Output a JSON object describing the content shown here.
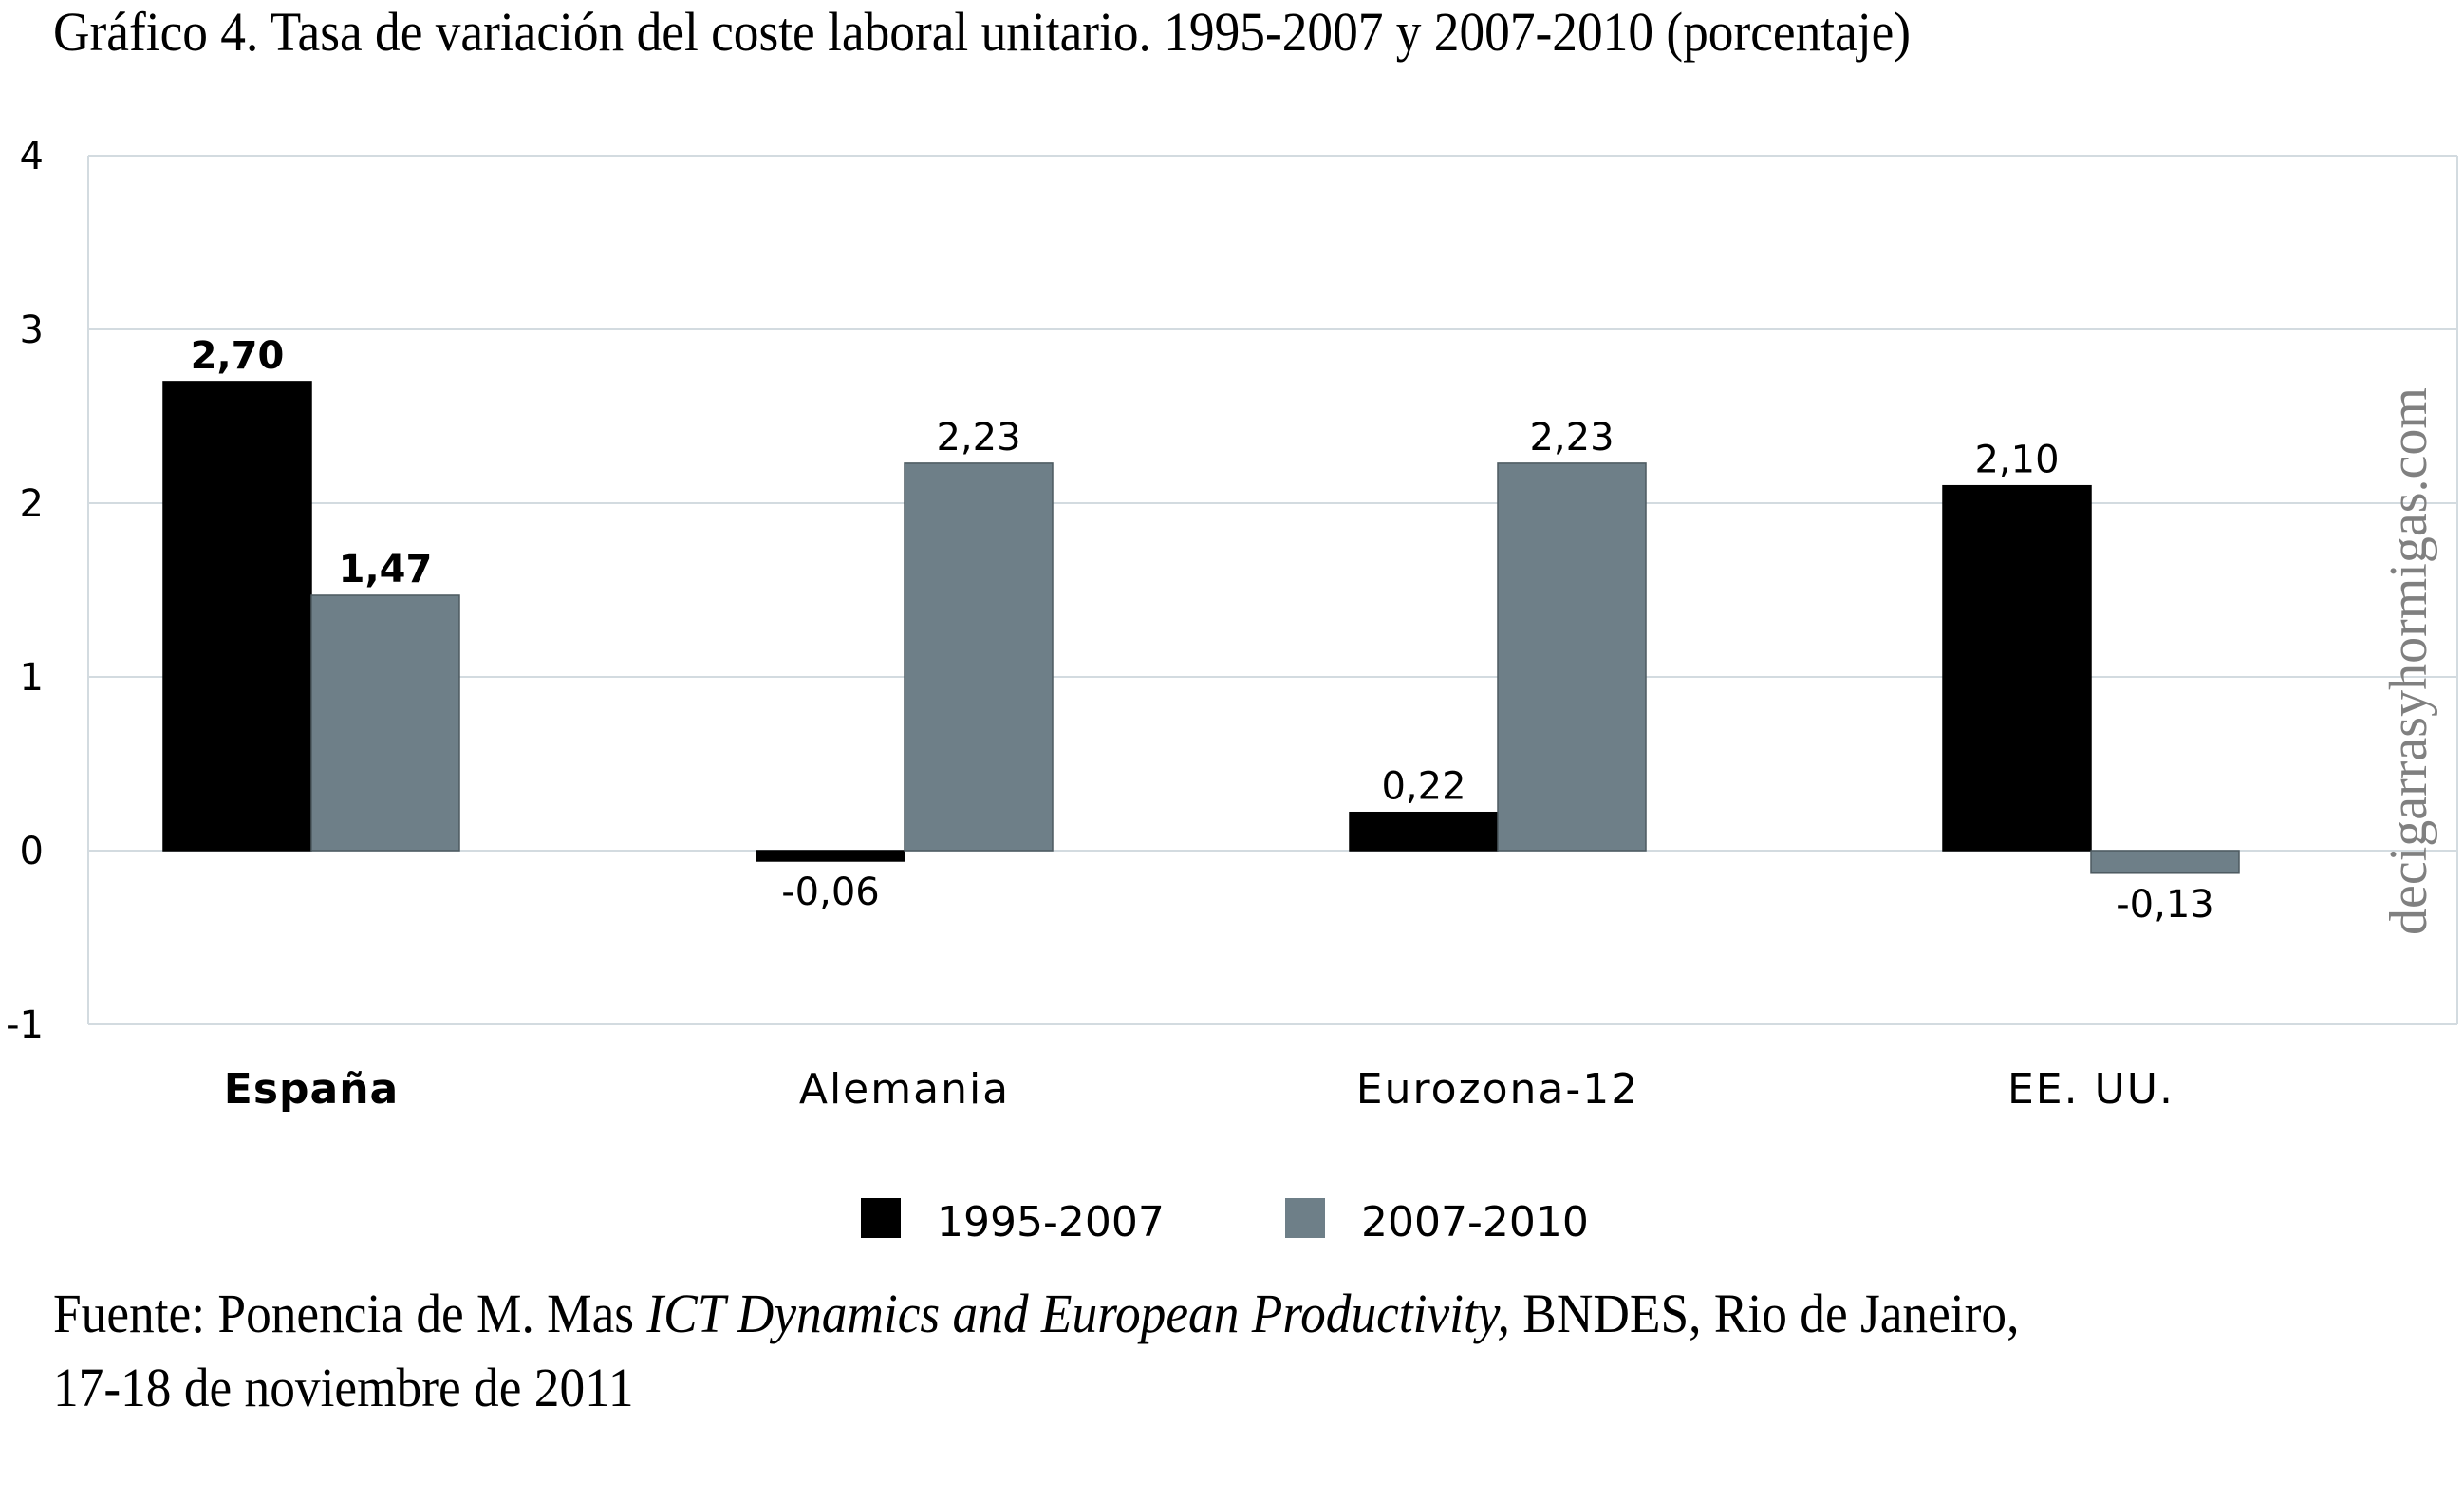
{
  "chart_data": {
    "type": "bar",
    "title": "Gráfico 4. Tasa de variación del coste laboral unitario. 1995-2007 y 2007-2010 (porcentaje)",
    "xlabel": "",
    "ylabel": "",
    "ylim": [
      -1,
      4
    ],
    "yticks": [
      "4",
      "3",
      "2",
      "1",
      "0",
      "-1"
    ],
    "ytick_values": [
      4,
      3,
      2,
      1,
      0,
      -1
    ],
    "grid": true,
    "legend_position": "bottom-center",
    "categories": [
      "España",
      "Alemania",
      "Eurozona-12",
      "EE. UU."
    ],
    "highlight_category": "España",
    "series": [
      {
        "name": "1995-2007",
        "color": "#000000",
        "values": [
          2.7,
          -0.06,
          0.22,
          2.1
        ],
        "labels": [
          "2,70",
          "-0,06",
          "0,22",
          "2,10"
        ]
      },
      {
        "name": "2007-2010",
        "color": "#6e7f88",
        "values": [
          1.47,
          2.23,
          2.23,
          -0.13
        ],
        "labels": [
          "1,47",
          "2,23",
          "2,23",
          "-0,13"
        ]
      }
    ]
  },
  "watermark": "decigarrasyhormigas.com",
  "footer": {
    "prefix": "Fuente: Ponencia de M. Mas ",
    "italic": "ICT Dynamics and European Productivity,",
    "suffix": " BNDES, Rio de Janeiro,",
    "line2": "17-18 de noviembre de 2011"
  },
  "colors": {
    "grid": "#d3dbe0",
    "bar_border": "#4d5a60",
    "watermark": "#808080"
  }
}
